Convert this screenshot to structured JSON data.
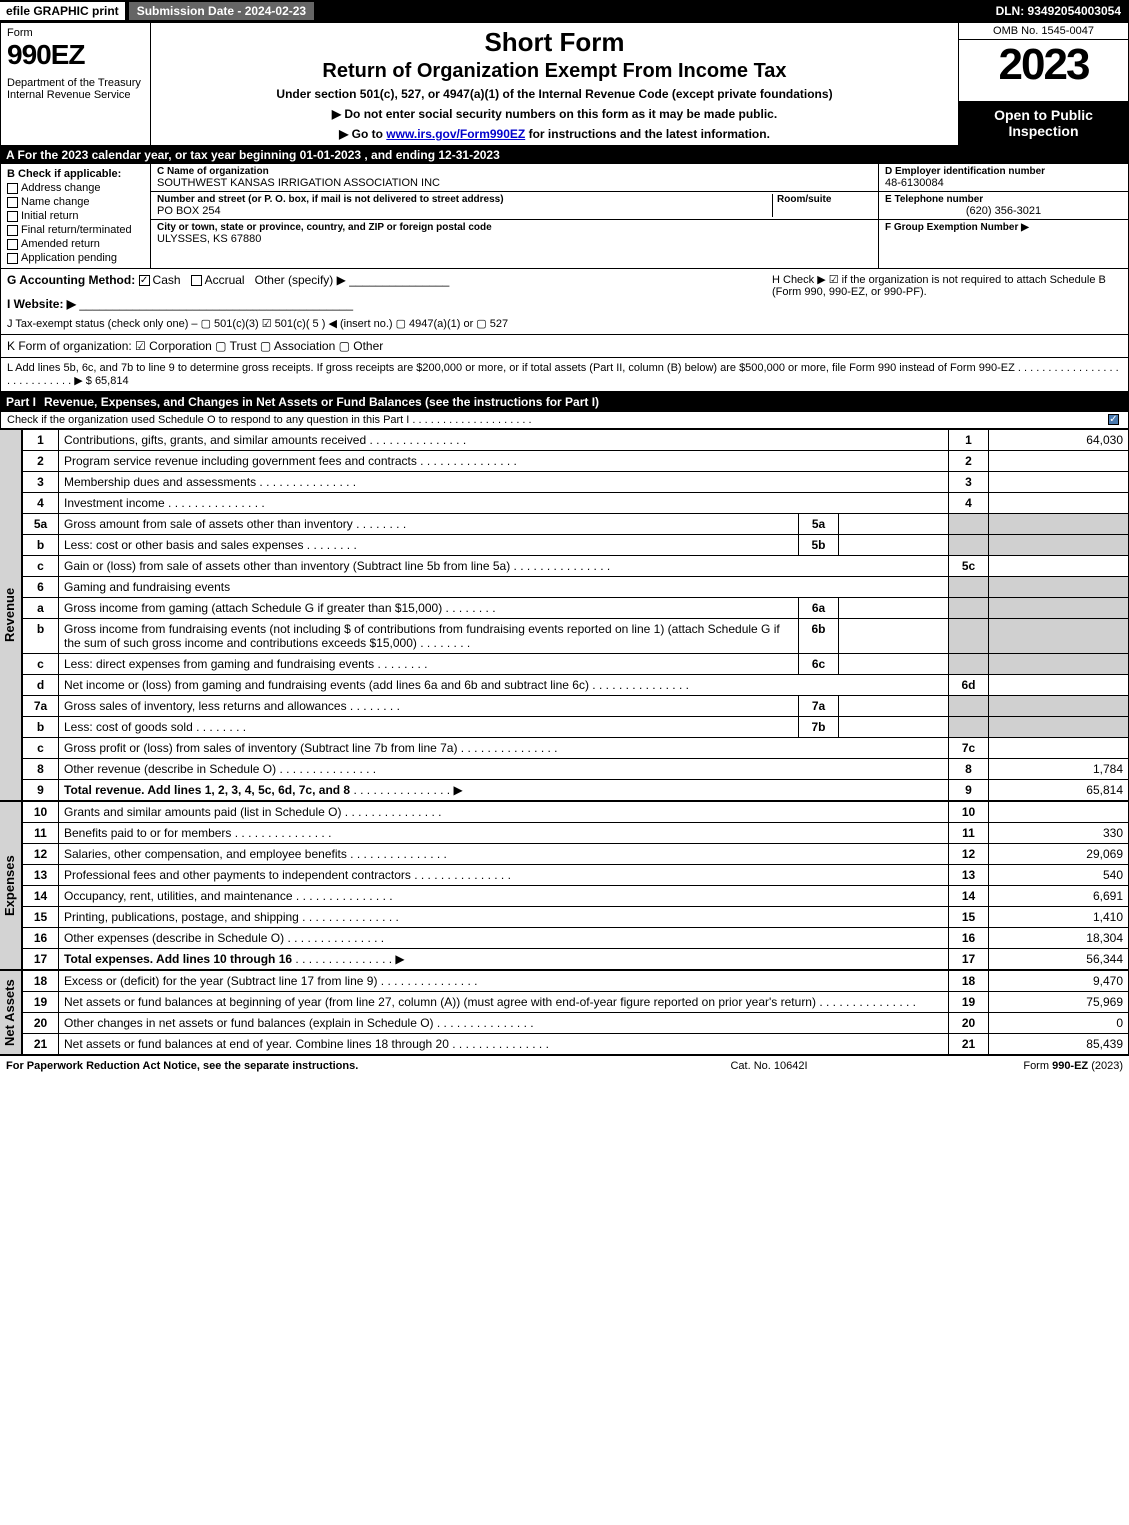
{
  "topbar": {
    "efile": "efile GRAPHIC print",
    "sub": "Submission Date - 2024-02-23",
    "dln": "DLN: 93492054003054"
  },
  "header": {
    "form": "Form",
    "num": "990EZ",
    "dept": "Department of the Treasury\nInternal Revenue Service",
    "title": "Short Form",
    "subtitle": "Return of Organization Exempt From Income Tax",
    "sub1": "Under section 501(c), 527, or 4947(a)(1) of the Internal Revenue Code (except private foundations)",
    "sub2a": "▶ Do not enter social security numbers on this form as it may be made public.",
    "sub2b": "▶ Go to www.irs.gov/Form990EZ for instructions and the latest information.",
    "omb": "OMB No. 1545-0047",
    "year": "2023",
    "open": "Open to Public Inspection"
  },
  "rowA": "A  For the 2023 calendar year, or tax year beginning 01-01-2023 , and ending 12-31-2023",
  "b": {
    "hdr": "B  Check if applicable:",
    "opts": [
      "Address change",
      "Name change",
      "Initial return",
      "Final return/terminated",
      "Amended return",
      "Application pending"
    ],
    "c_lbl": "C Name of organization",
    "c_name": "SOUTHWEST KANSAS IRRIGATION ASSOCIATION INC",
    "addr_lbl": "Number and street (or P. O. box, if mail is not delivered to street address)",
    "room_lbl": "Room/suite",
    "addr": "PO BOX 254",
    "city_lbl": "City or town, state or province, country, and ZIP or foreign postal code",
    "city": "ULYSSES, KS  67880",
    "d_lbl": "D Employer identification number",
    "d_val": "48-6130084",
    "e_lbl": "E Telephone number",
    "e_val": "(620) 356-3021",
    "f_lbl": "F Group Exemption Number  ▶"
  },
  "g": {
    "acc": "G Accounting Method:",
    "cash": "Cash",
    "accr": "Accrual",
    "other": "Other (specify) ▶",
    "h": "H  Check ▶ ☑ if the organization is not required to attach Schedule B (Form 990, 990-EZ, or 990-PF).",
    "web": "I Website: ▶",
    "j": "J Tax-exempt status (check only one) – ▢ 501(c)(3)  ☑ 501(c)( 5 ) ◀ (insert no.)  ▢ 4947(a)(1) or  ▢ 527"
  },
  "k": "K Form of organization:  ☑ Corporation  ▢ Trust  ▢ Association  ▢ Other",
  "l": {
    "text": "L Add lines 5b, 6c, and 7b to line 9 to determine gross receipts. If gross receipts are $200,000 or more, or if total assets (Part II, column (B) below) are $500,000 or more, file Form 990 instead of Form 990-EZ  .  .  .  .  .  .  .  .  .  .  .  .  .  .  .  .  .  .  .  .  .  .  .  .  .  .  .  .  ▶ $",
    "val": "65,814"
  },
  "part1": {
    "num": "Part I",
    "title": "Revenue, Expenses, and Changes in Net Assets or Fund Balances (see the instructions for Part I)",
    "sub": "Check if the organization used Schedule O to respond to any question in this Part I .  .  .  .  .  .  .  .  .  .  .  .  .  .  .  .  .  .  .  ."
  },
  "vlabels": {
    "rev": "Revenue",
    "exp": "Expenses",
    "net": "Net Assets"
  },
  "lines": [
    {
      "n": "1",
      "d": "Contributions, gifts, grants, and similar amounts received",
      "ln": "1",
      "v": "64,030"
    },
    {
      "n": "2",
      "d": "Program service revenue including government fees and contracts",
      "ln": "2",
      "v": ""
    },
    {
      "n": "3",
      "d": "Membership dues and assessments",
      "ln": "3",
      "v": ""
    },
    {
      "n": "4",
      "d": "Investment income",
      "ln": "4",
      "v": ""
    },
    {
      "n": "5a",
      "d": "Gross amount from sale of assets other than inventory",
      "sn": "5a",
      "sv": ""
    },
    {
      "n": "b",
      "d": "Less: cost or other basis and sales expenses",
      "sn": "5b",
      "sv": ""
    },
    {
      "n": "c",
      "d": "Gain or (loss) from sale of assets other than inventory (Subtract line 5b from line 5a)",
      "ln": "5c",
      "v": ""
    },
    {
      "n": "6",
      "d": "Gaming and fundraising events"
    },
    {
      "n": "a",
      "d": "Gross income from gaming (attach Schedule G if greater than $15,000)",
      "sn": "6a",
      "sv": ""
    },
    {
      "n": "b",
      "d": "Gross income from fundraising events (not including $                    of contributions from fundraising events reported on line 1) (attach Schedule G if the sum of such gross income and contributions exceeds $15,000)",
      "sn": "6b",
      "sv": ""
    },
    {
      "n": "c",
      "d": "Less: direct expenses from gaming and fundraising events",
      "sn": "6c",
      "sv": ""
    },
    {
      "n": "d",
      "d": "Net income or (loss) from gaming and fundraising events (add lines 6a and 6b and subtract line 6c)",
      "ln": "6d",
      "v": ""
    },
    {
      "n": "7a",
      "d": "Gross sales of inventory, less returns and allowances",
      "sn": "7a",
      "sv": ""
    },
    {
      "n": "b",
      "d": "Less: cost of goods sold",
      "sn": "7b",
      "sv": ""
    },
    {
      "n": "c",
      "d": "Gross profit or (loss) from sales of inventory (Subtract line 7b from line 7a)",
      "ln": "7c",
      "v": ""
    },
    {
      "n": "8",
      "d": "Other revenue (describe in Schedule O)",
      "ln": "8",
      "v": "1,784"
    },
    {
      "n": "9",
      "d": "Total revenue. Add lines 1, 2, 3, 4, 5c, 6d, 7c, and 8",
      "ln": "9",
      "v": "65,814",
      "bold": true,
      "arrow": true
    }
  ],
  "exp_lines": [
    {
      "n": "10",
      "d": "Grants and similar amounts paid (list in Schedule O)",
      "ln": "10",
      "v": ""
    },
    {
      "n": "11",
      "d": "Benefits paid to or for members",
      "ln": "11",
      "v": "330"
    },
    {
      "n": "12",
      "d": "Salaries, other compensation, and employee benefits",
      "ln": "12",
      "v": "29,069"
    },
    {
      "n": "13",
      "d": "Professional fees and other payments to independent contractors",
      "ln": "13",
      "v": "540"
    },
    {
      "n": "14",
      "d": "Occupancy, rent, utilities, and maintenance",
      "ln": "14",
      "v": "6,691"
    },
    {
      "n": "15",
      "d": "Printing, publications, postage, and shipping",
      "ln": "15",
      "v": "1,410"
    },
    {
      "n": "16",
      "d": "Other expenses (describe in Schedule O)",
      "ln": "16",
      "v": "18,304"
    },
    {
      "n": "17",
      "d": "Total expenses. Add lines 10 through 16",
      "ln": "17",
      "v": "56,344",
      "bold": true,
      "arrow": true
    }
  ],
  "net_lines": [
    {
      "n": "18",
      "d": "Excess or (deficit) for the year (Subtract line 17 from line 9)",
      "ln": "18",
      "v": "9,470"
    },
    {
      "n": "19",
      "d": "Net assets or fund balances at beginning of year (from line 27, column (A)) (must agree with end-of-year figure reported on prior year's return)",
      "ln": "19",
      "v": "75,969"
    },
    {
      "n": "20",
      "d": "Other changes in net assets or fund balances (explain in Schedule O)",
      "ln": "20",
      "v": "0"
    },
    {
      "n": "21",
      "d": "Net assets or fund balances at end of year. Combine lines 18 through 20",
      "ln": "21",
      "v": "85,439"
    }
  ],
  "footer": {
    "l": "For Paperwork Reduction Act Notice, see the separate instructions.",
    "c": "Cat. No. 10642I",
    "r": "Form 990-EZ (2023)"
  }
}
